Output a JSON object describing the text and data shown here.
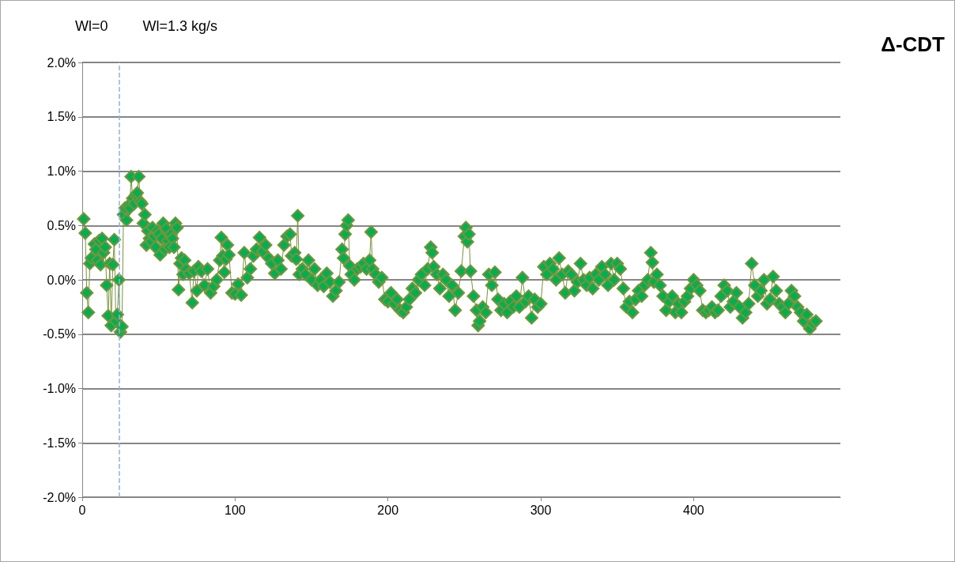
{
  "chart_data": {
    "type": "line",
    "title": "Δ-CDT",
    "annotations": [
      "Wl=0",
      "Wl=1.3 kg/s"
    ],
    "xlim": [
      0,
      496
    ],
    "xticks": [
      0,
      100,
      200,
      300,
      400
    ],
    "ylim": [
      -2,
      2
    ],
    "yticks": [
      {
        "value": -2,
        "label": "-2.0%"
      },
      {
        "value": -1.5,
        "label": "-1.5%"
      },
      {
        "value": -1,
        "label": "-1.0%"
      },
      {
        "value": -0.5,
        "label": "-0.5%"
      },
      {
        "value": 0,
        "label": "0.0%"
      },
      {
        "value": 0.5,
        "label": "0.5%"
      },
      {
        "value": 1,
        "label": "1.0%"
      },
      {
        "value": 1.5,
        "label": "1.5%"
      },
      {
        "value": 2,
        "label": "2.0%"
      }
    ],
    "grid": "y",
    "marker": "diamond",
    "line_style": "solid",
    "ref_lines": [
      {
        "axis": "x",
        "value": 24,
        "color": "#8db3e2",
        "line_style": "dashed"
      }
    ],
    "series": [
      {
        "color": "#00b050",
        "x": [
          1,
          2,
          3,
          4,
          5,
          6,
          8,
          9,
          10,
          11,
          12,
          13,
          14,
          15,
          16,
          17,
          18,
          19,
          20,
          21,
          22,
          23,
          24,
          25,
          26,
          27,
          28,
          29,
          30,
          31,
          32,
          33,
          34,
          35,
          36,
          37,
          38,
          39,
          40,
          41,
          42,
          43,
          44,
          45,
          46,
          47,
          48,
          49,
          50,
          51,
          52,
          53,
          54,
          55,
          56,
          57,
          58,
          59,
          60,
          61,
          62,
          63,
          64,
          65,
          66,
          67,
          68,
          70,
          72,
          73,
          75,
          76,
          78,
          80,
          82,
          84,
          86,
          88,
          90,
          91,
          92,
          93,
          94,
          95,
          96,
          98,
          100,
          102,
          104,
          106,
          108,
          110,
          112,
          114,
          116,
          118,
          120,
          122,
          124,
          126,
          128,
          130,
          132,
          134,
          136,
          137,
          139,
          140,
          141,
          142,
          144,
          146,
          148,
          150,
          152,
          154,
          156,
          158,
          160,
          162,
          164,
          166,
          168,
          170,
          171,
          172,
          173,
          174,
          175,
          176,
          178,
          180,
          182,
          184,
          186,
          188,
          189,
          190,
          192,
          194,
          196,
          198,
          200,
          202,
          204,
          206,
          208,
          210,
          212,
          214,
          216,
          218,
          220,
          222,
          224,
          226,
          228,
          229,
          230,
          232,
          234,
          236,
          238,
          240,
          242,
          244,
          246,
          248,
          250,
          251,
          252,
          253,
          254,
          256,
          258,
          259,
          260,
          262,
          264,
          266,
          268,
          270,
          272,
          274,
          276,
          278,
          280,
          282,
          284,
          286,
          288,
          290,
          292,
          294,
          296,
          298,
          300,
          302,
          304,
          306,
          308,
          310,
          312,
          314,
          316,
          318,
          320,
          322,
          324,
          326,
          328,
          330,
          332,
          334,
          336,
          338,
          340,
          342,
          344,
          346,
          348,
          350,
          352,
          354,
          356,
          358,
          360,
          362,
          364,
          366,
          368,
          370,
          372,
          373,
          374,
          376,
          378,
          380,
          382,
          384,
          386,
          388,
          390,
          392,
          394,
          396,
          398,
          400,
          402,
          404,
          406,
          408,
          410,
          412,
          414,
          416,
          418,
          420,
          422,
          424,
          426,
          428,
          430,
          432,
          434,
          436,
          438,
          440,
          442,
          444,
          446,
          448,
          450,
          452,
          454,
          456,
          458,
          460,
          462,
          464,
          466,
          468,
          470,
          472,
          474,
          476,
          478,
          480
        ],
        "values": [
          0.56,
          0.43,
          -0.12,
          -0.3,
          0.15,
          0.2,
          0.33,
          0.28,
          0.18,
          0.36,
          0.14,
          0.38,
          0.25,
          0.3,
          -0.05,
          -0.33,
          0.15,
          -0.42,
          0.14,
          0.37,
          -0.38,
          -0.32,
          0,
          -0.48,
          -0.43,
          0.6,
          0.66,
          0.55,
          0.68,
          0.66,
          0.95,
          0.75,
          0.7,
          0.78,
          0.8,
          0.95,
          0.72,
          0.7,
          0.52,
          0.6,
          0.32,
          0.45,
          0.38,
          0.35,
          0.48,
          0.4,
          0.3,
          0.45,
          0.42,
          0.23,
          0.38,
          0.52,
          0.28,
          0.47,
          0.36,
          0.3,
          0.42,
          0.38,
          0.3,
          0.52,
          0.48,
          -0.09,
          0.15,
          0.2,
          0.05,
          0.18,
          0.1,
          0.06,
          -0.21,
          0.08,
          -0.1,
          0.12,
          0.08,
          -0.05,
          0.1,
          -0.12,
          -0.06,
          0,
          0.18,
          0.39,
          0.22,
          0.07,
          0.19,
          0.32,
          0.23,
          -0.12,
          -0.13,
          -0.04,
          -0.14,
          0.25,
          0.02,
          0.1,
          0.22,
          0.28,
          0.39,
          0.26,
          0.32,
          0.2,
          0.15,
          0.06,
          0.18,
          0.1,
          0.32,
          0.4,
          0.42,
          0.22,
          0.25,
          0.19,
          0.59,
          0.05,
          0.1,
          0.05,
          0.18,
          0,
          0.1,
          -0.05,
          0,
          -0.06,
          0.06,
          -0.02,
          -0.15,
          -0.1,
          -0.02,
          0.28,
          0.2,
          0.42,
          0.5,
          0.55,
          0.13,
          0.05,
          0,
          0.1,
          0.12,
          0.15,
          0.1,
          0.18,
          0.44,
          0.1,
          0.05,
          -0.02,
          0.02,
          -0.18,
          -0.2,
          -0.12,
          -0.22,
          -0.18,
          -0.28,
          -0.3,
          -0.25,
          -0.18,
          -0.08,
          -0.12,
          0,
          0.05,
          -0.05,
          0.1,
          0.3,
          0.25,
          0.12,
          0.05,
          -0.08,
          0.05,
          0,
          -0.15,
          -0.05,
          -0.28,
          -0.12,
          0.08,
          0.4,
          0.48,
          0.35,
          0.42,
          0.08,
          -0.15,
          -0.28,
          -0.42,
          -0.38,
          -0.25,
          -0.3,
          0.05,
          -0.05,
          0.07,
          -0.18,
          -0.28,
          -0.22,
          -0.3,
          -0.2,
          -0.25,
          -0.15,
          -0.25,
          0.02,
          -0.2,
          -0.15,
          -0.35,
          -0.18,
          -0.25,
          -0.22,
          0.12,
          0.05,
          0.15,
          0.1,
          0,
          0.2,
          0.05,
          -0.12,
          0.08,
          0.05,
          -0.1,
          -0.02,
          0.15,
          0,
          -0.05,
          0.02,
          -0.08,
          0.05,
          0,
          0.12,
          0.05,
          -0.05,
          0.15,
          0,
          0.15,
          0.1,
          -0.08,
          -0.25,
          -0.2,
          -0.3,
          -0.18,
          -0.1,
          -0.15,
          -0.05,
          0,
          0.25,
          0.16,
          -0.02,
          0.05,
          -0.05,
          -0.15,
          -0.28,
          -0.2,
          -0.15,
          -0.3,
          -0.22,
          -0.3,
          -0.2,
          -0.15,
          -0.08,
          0,
          -0.05,
          -0.1,
          -0.28,
          -0.3,
          -0.28,
          -0.25,
          -0.3,
          -0.28,
          -0.15,
          -0.05,
          -0.1,
          -0.25,
          -0.2,
          -0.12,
          -0.25,
          -0.35,
          -0.3,
          -0.22,
          0.15,
          -0.05,
          -0.15,
          -0.1,
          0,
          -0.22,
          -0.18,
          0.03,
          -0.1,
          -0.22,
          -0.25,
          -0.3,
          -0.22,
          -0.1,
          -0.15,
          -0.25,
          -0.3,
          -0.38,
          -0.32,
          -0.45,
          -0.4,
          -0.38
        ]
      }
    ]
  }
}
